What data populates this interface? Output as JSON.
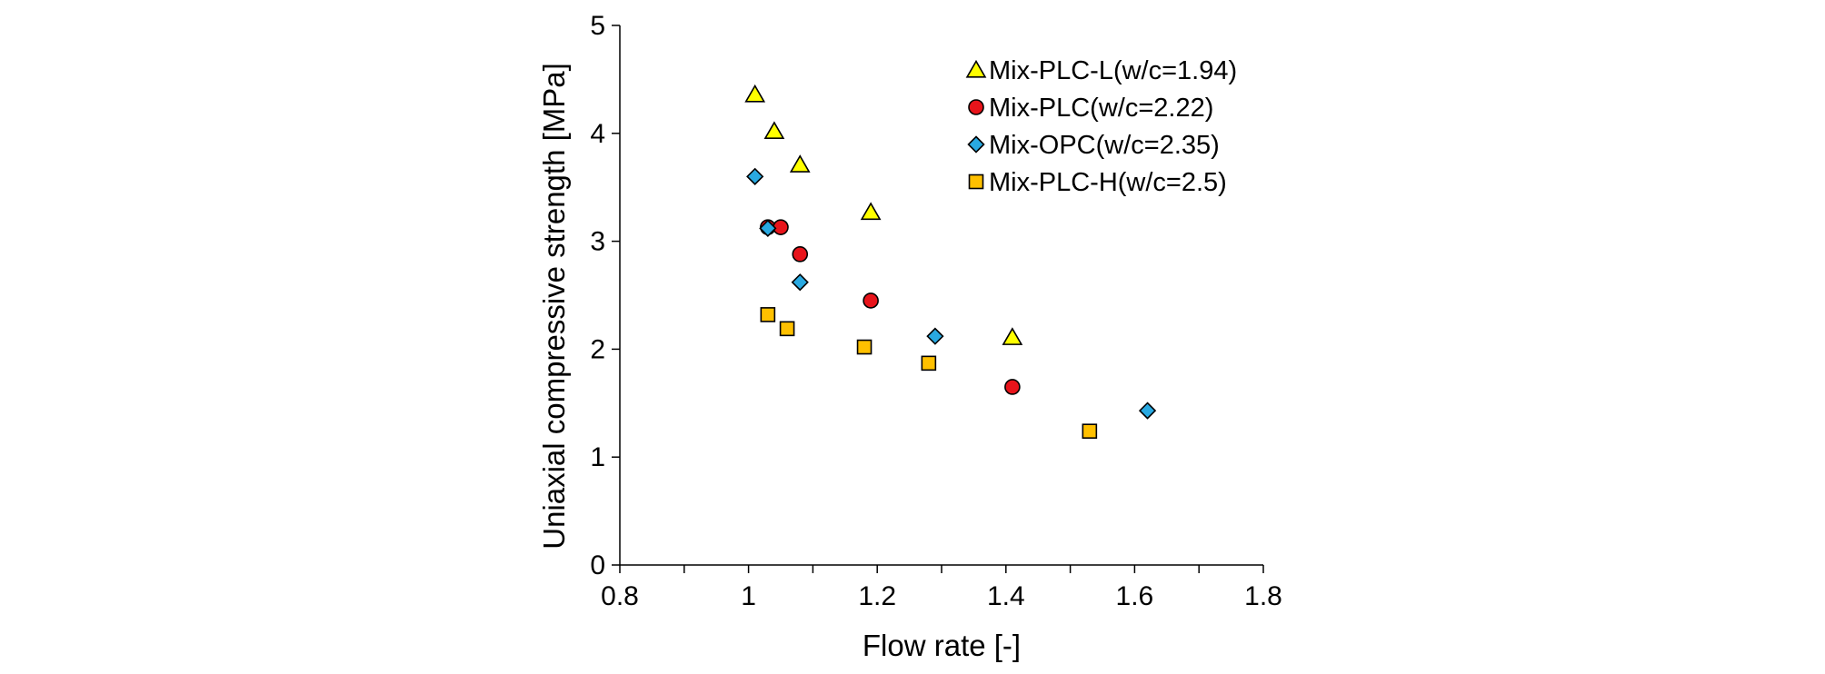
{
  "chart_data": {
    "type": "scatter",
    "title": "",
    "xlabel": "Flow rate [-]",
    "ylabel": "Uniaxial compressive strength [MPa]",
    "xlim": [
      0.8,
      1.8
    ],
    "ylim": [
      0,
      5
    ],
    "xticks": [
      "0.8",
      "1",
      "1.2",
      "1.4",
      "1.6",
      "1.8"
    ],
    "yticks": [
      "0",
      "1",
      "2",
      "3",
      "4",
      "5"
    ],
    "grid": false,
    "legend_position": "top-right",
    "series": [
      {
        "name": "Mix-PLC-L(w/c=1.94)",
        "marker": "triangle",
        "color": "#FFFF00",
        "points": [
          {
            "x": 1.01,
            "y": 4.36
          },
          {
            "x": 1.04,
            "y": 4.02
          },
          {
            "x": 1.08,
            "y": 3.71
          },
          {
            "x": 1.19,
            "y": 3.27
          },
          {
            "x": 1.41,
            "y": 2.11
          }
        ]
      },
      {
        "name": "Mix-PLC(w/c=2.22)",
        "marker": "circle",
        "color": "#E8141B",
        "points": [
          {
            "x": 1.03,
            "y": 3.13
          },
          {
            "x": 1.05,
            "y": 3.13
          },
          {
            "x": 1.08,
            "y": 2.88
          },
          {
            "x": 1.19,
            "y": 2.45
          },
          {
            "x": 1.41,
            "y": 1.65
          }
        ]
      },
      {
        "name": "Mix-OPC(w/c=2.35)",
        "marker": "diamond",
        "color": "#29A9E1",
        "points": [
          {
            "x": 1.01,
            "y": 3.6
          },
          {
            "x": 1.03,
            "y": 3.12
          },
          {
            "x": 1.08,
            "y": 2.62
          },
          {
            "x": 1.29,
            "y": 2.12
          },
          {
            "x": 1.62,
            "y": 1.43
          }
        ]
      },
      {
        "name": "Mix-PLC-H(w/c=2.5)",
        "marker": "square",
        "color": "#FFC000",
        "points": [
          {
            "x": 1.03,
            "y": 2.32
          },
          {
            "x": 1.06,
            "y": 2.19
          },
          {
            "x": 1.18,
            "y": 2.02
          },
          {
            "x": 1.28,
            "y": 1.87
          },
          {
            "x": 1.53,
            "y": 1.24
          }
        ]
      }
    ]
  }
}
